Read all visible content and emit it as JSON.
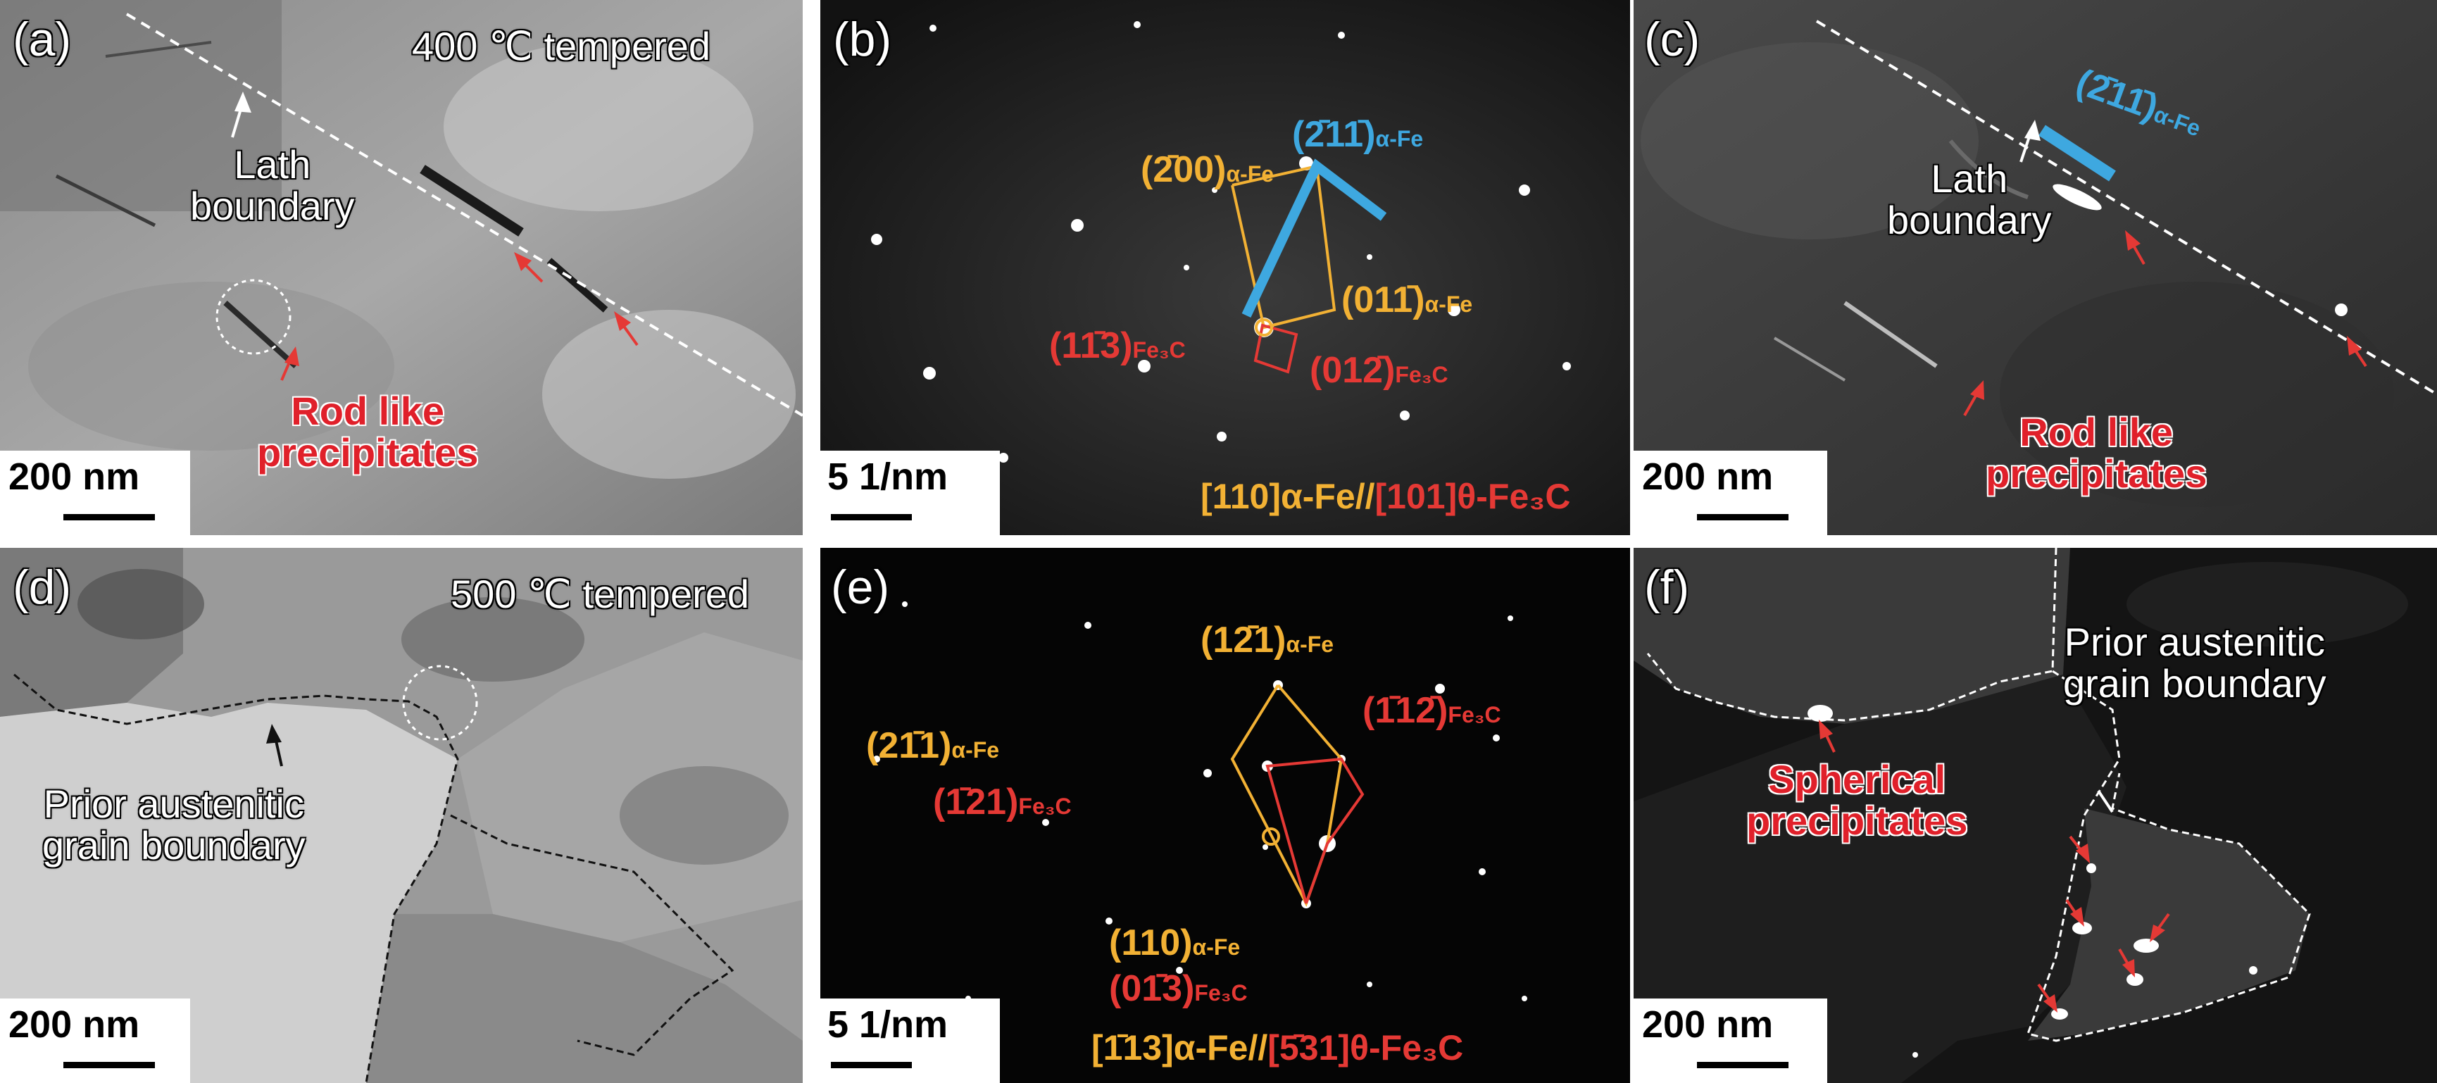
{
  "panels": {
    "a": {
      "label": "(a)",
      "temper": "400 ℃ tempered",
      "lath": "Lath\nboundary",
      "rod": "Rod like\nprecipitates",
      "scale": "200 nm"
    },
    "b": {
      "label": "(b)",
      "spot_200": "(2̄00)",
      "spot_211": "(2̄11̄)",
      "spot_011": "(011̄)",
      "spot_113": "(11̄3)",
      "spot_012": "(012̄)",
      "sub_afe": "α-Fe",
      "sub_fe3c": "Fe₃C",
      "zone_yellow": "[110]α-Fe//",
      "zone_red": "[101]θ-Fe₃C",
      "scale": "5 1/nm"
    },
    "c": {
      "label": "(c)",
      "spot": "(2̄11̄)",
      "sub_afe": "α-Fe",
      "lath": "Lath\nboundary",
      "rod": "Rod like\nprecipitates",
      "scale": "200 nm"
    },
    "d": {
      "label": "(d)",
      "temper": "500 ℃ tempered",
      "pagb": "Prior austenitic\ngrain boundary",
      "scale": "200 nm"
    },
    "e": {
      "label": "(e)",
      "spot_121a": "(12̄1)",
      "spot_211": "(21̄1)",
      "spot_112": "(1̄12̄)",
      "spot_121c": "(1̄21)",
      "spot_110": "(110)",
      "spot_013": "(01̄3)",
      "sub_afe": "α-Fe",
      "sub_fe3c": "Fe₃C",
      "zone_yellow": "[1̄13]α-Fe//",
      "zone_red": "[5̄31]θ-Fe₃C",
      "scale": "5 1/nm"
    },
    "f": {
      "label": "(f)",
      "pagb": "Prior austenitic\ngrain boundary",
      "sph": "Spherical\nprecipitates",
      "scale": "200 nm"
    }
  },
  "colors": {
    "yellow": "#f2b134",
    "red": "#e53935",
    "blue": "#3ea8e0",
    "white": "#ffffff"
  }
}
